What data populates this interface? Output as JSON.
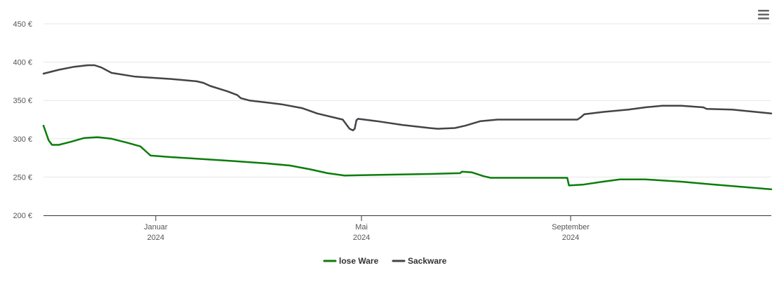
{
  "chart_data": {
    "type": "line",
    "y_ticks": [
      "200 €",
      "250 €",
      "300 €",
      "350 €",
      "400 €",
      "450 €"
    ],
    "y_tick_values": [
      200,
      250,
      300,
      350,
      400,
      450
    ],
    "ylim": [
      200,
      450
    ],
    "xlim": [
      "2023-10-27",
      "2024-12-28"
    ],
    "x_ticks": [
      {
        "date": "2024-01-01",
        "month": "Januar",
        "year": "2024"
      },
      {
        "date": "2024-05-01",
        "month": "Mai",
        "year": "2024"
      },
      {
        "date": "2024-09-01",
        "month": "September",
        "year": "2024"
      }
    ],
    "grid": true,
    "legend_position": "bottom-center",
    "series": [
      {
        "name": "lose Ware",
        "color": "#0a7d0a",
        "points": [
          [
            "2023-10-27",
            317
          ],
          [
            "2023-10-30",
            298
          ],
          [
            "2023-11-01",
            292
          ],
          [
            "2023-11-05",
            292
          ],
          [
            "2023-11-12",
            296
          ],
          [
            "2023-11-20",
            301
          ],
          [
            "2023-11-28",
            302
          ],
          [
            "2023-12-06",
            300
          ],
          [
            "2023-12-15",
            295
          ],
          [
            "2023-12-23",
            290
          ],
          [
            "2023-12-27",
            282
          ],
          [
            "2023-12-29",
            278
          ],
          [
            "2024-01-10",
            276
          ],
          [
            "2024-01-25",
            274
          ],
          [
            "2024-02-15",
            271
          ],
          [
            "2024-03-05",
            268
          ],
          [
            "2024-03-20",
            265
          ],
          [
            "2024-04-01",
            260
          ],
          [
            "2024-04-11",
            255
          ],
          [
            "2024-04-21",
            252
          ],
          [
            "2024-05-15",
            253
          ],
          [
            "2024-06-10",
            254
          ],
          [
            "2024-06-28",
            255
          ],
          [
            "2024-06-29",
            257
          ],
          [
            "2024-07-05",
            256
          ],
          [
            "2024-07-12",
            251
          ],
          [
            "2024-07-16",
            249
          ],
          [
            "2024-08-15",
            249
          ],
          [
            "2024-08-30",
            249
          ],
          [
            "2024-08-31",
            239
          ],
          [
            "2024-09-08",
            240
          ],
          [
            "2024-09-20",
            244
          ],
          [
            "2024-09-30",
            247
          ],
          [
            "2024-10-15",
            247
          ],
          [
            "2024-11-05",
            244
          ],
          [
            "2024-11-25",
            240
          ],
          [
            "2024-12-28",
            234
          ]
        ]
      },
      {
        "name": "Sackware",
        "color": "#434348",
        "points": [
          [
            "2023-10-27",
            385
          ],
          [
            "2023-11-05",
            390
          ],
          [
            "2023-11-14",
            394
          ],
          [
            "2023-11-22",
            396
          ],
          [
            "2023-11-26",
            396
          ],
          [
            "2023-11-30",
            393
          ],
          [
            "2023-12-06",
            386
          ],
          [
            "2023-12-20",
            381
          ],
          [
            "2024-01-10",
            378
          ],
          [
            "2024-01-25",
            375
          ],
          [
            "2024-01-29",
            373
          ],
          [
            "2024-02-02",
            369
          ],
          [
            "2024-02-12",
            362
          ],
          [
            "2024-02-18",
            357
          ],
          [
            "2024-02-20",
            353
          ],
          [
            "2024-02-25",
            350
          ],
          [
            "2024-03-15",
            345
          ],
          [
            "2024-03-27",
            340
          ],
          [
            "2024-04-05",
            333
          ],
          [
            "2024-04-20",
            325
          ],
          [
            "2024-05-05",
            320
          ],
          [
            "2024-05-20",
            317
          ],
          [
            "2024-06-05",
            314
          ],
          [
            "2024-06-15",
            313
          ],
          [
            "2024-06-25",
            314
          ],
          [
            "2024-07-01",
            317
          ],
          [
            "2024-07-10",
            323
          ],
          [
            "2024-07-20",
            325
          ],
          [
            "2024-08-15",
            325
          ],
          [
            "2024-09-05",
            325
          ],
          [
            "2024-09-07",
            328
          ],
          [
            "2024-09-09",
            332
          ],
          [
            "2024-09-20",
            335
          ],
          [
            "2024-10-05",
            338
          ],
          [
            "2024-10-15",
            341
          ],
          [
            "2024-10-25",
            343
          ],
          [
            "2024-11-05",
            343
          ],
          [
            "2024-11-18",
            341
          ],
          [
            "2024-11-20",
            339
          ],
          [
            "2024-12-05",
            338
          ],
          [
            "2024-12-28",
            333
          ]
        ],
        "extra_segment": [
          [
            "2024-04-24",
            313
          ],
          [
            "2024-04-26",
            311
          ],
          [
            "2024-04-27",
            313
          ],
          [
            "2024-04-28",
            324
          ],
          [
            "2024-04-29",
            326
          ],
          [
            "2024-05-10",
            323
          ],
          [
            "2024-05-25",
            318
          ],
          [
            "2024-06-10",
            314
          ],
          [
            "2024-06-15",
            313
          ]
        ]
      }
    ]
  },
  "menu": {
    "icon": "hamburger-menu-icon"
  }
}
